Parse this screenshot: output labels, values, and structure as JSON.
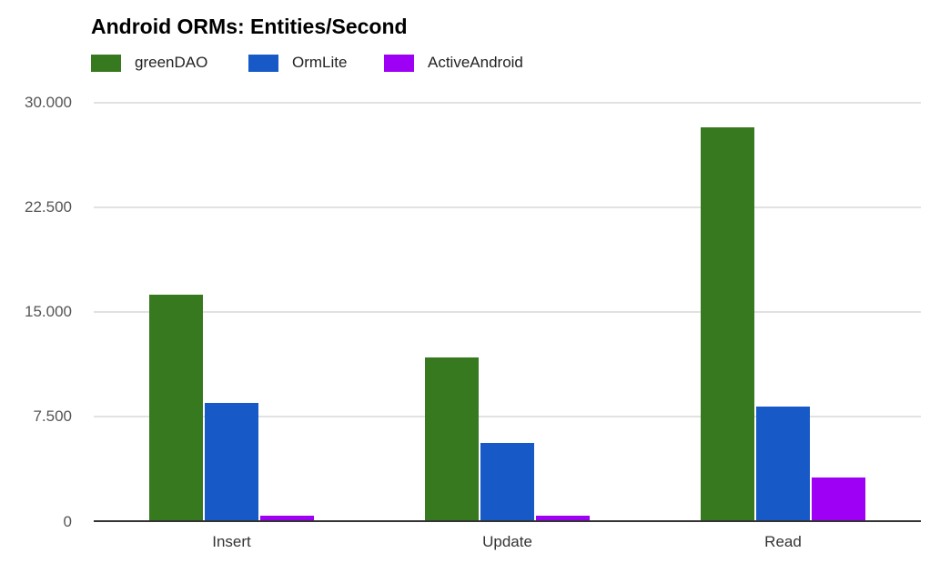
{
  "chart_data": {
    "type": "bar",
    "title": "Android ORMs: Entities/Second",
    "categories": [
      "Insert",
      "Update",
      "Read"
    ],
    "series": [
      {
        "name": "greenDAO",
        "color": "#37791f",
        "values": [
          16200,
          11750,
          28200
        ]
      },
      {
        "name": "OrmLite",
        "color": "#1659c7",
        "values": [
          8500,
          5600,
          8200
        ]
      },
      {
        "name": "ActiveAndroid",
        "color": "#9d00f5",
        "values": [
          360,
          360,
          3100
        ]
      }
    ],
    "xlabel": "",
    "ylabel": "",
    "ylim": [
      0,
      30000
    ],
    "yticks": [
      0,
      7500,
      15000,
      22500,
      30000
    ],
    "ytick_labels": [
      "0",
      "7.500",
      "15.000",
      "22.500",
      "30.000"
    ],
    "grid": true,
    "legend_position": "top",
    "background_color": "#ffffff",
    "gridline_color": "#e2e2e2",
    "axis_line_color": "#333333"
  }
}
